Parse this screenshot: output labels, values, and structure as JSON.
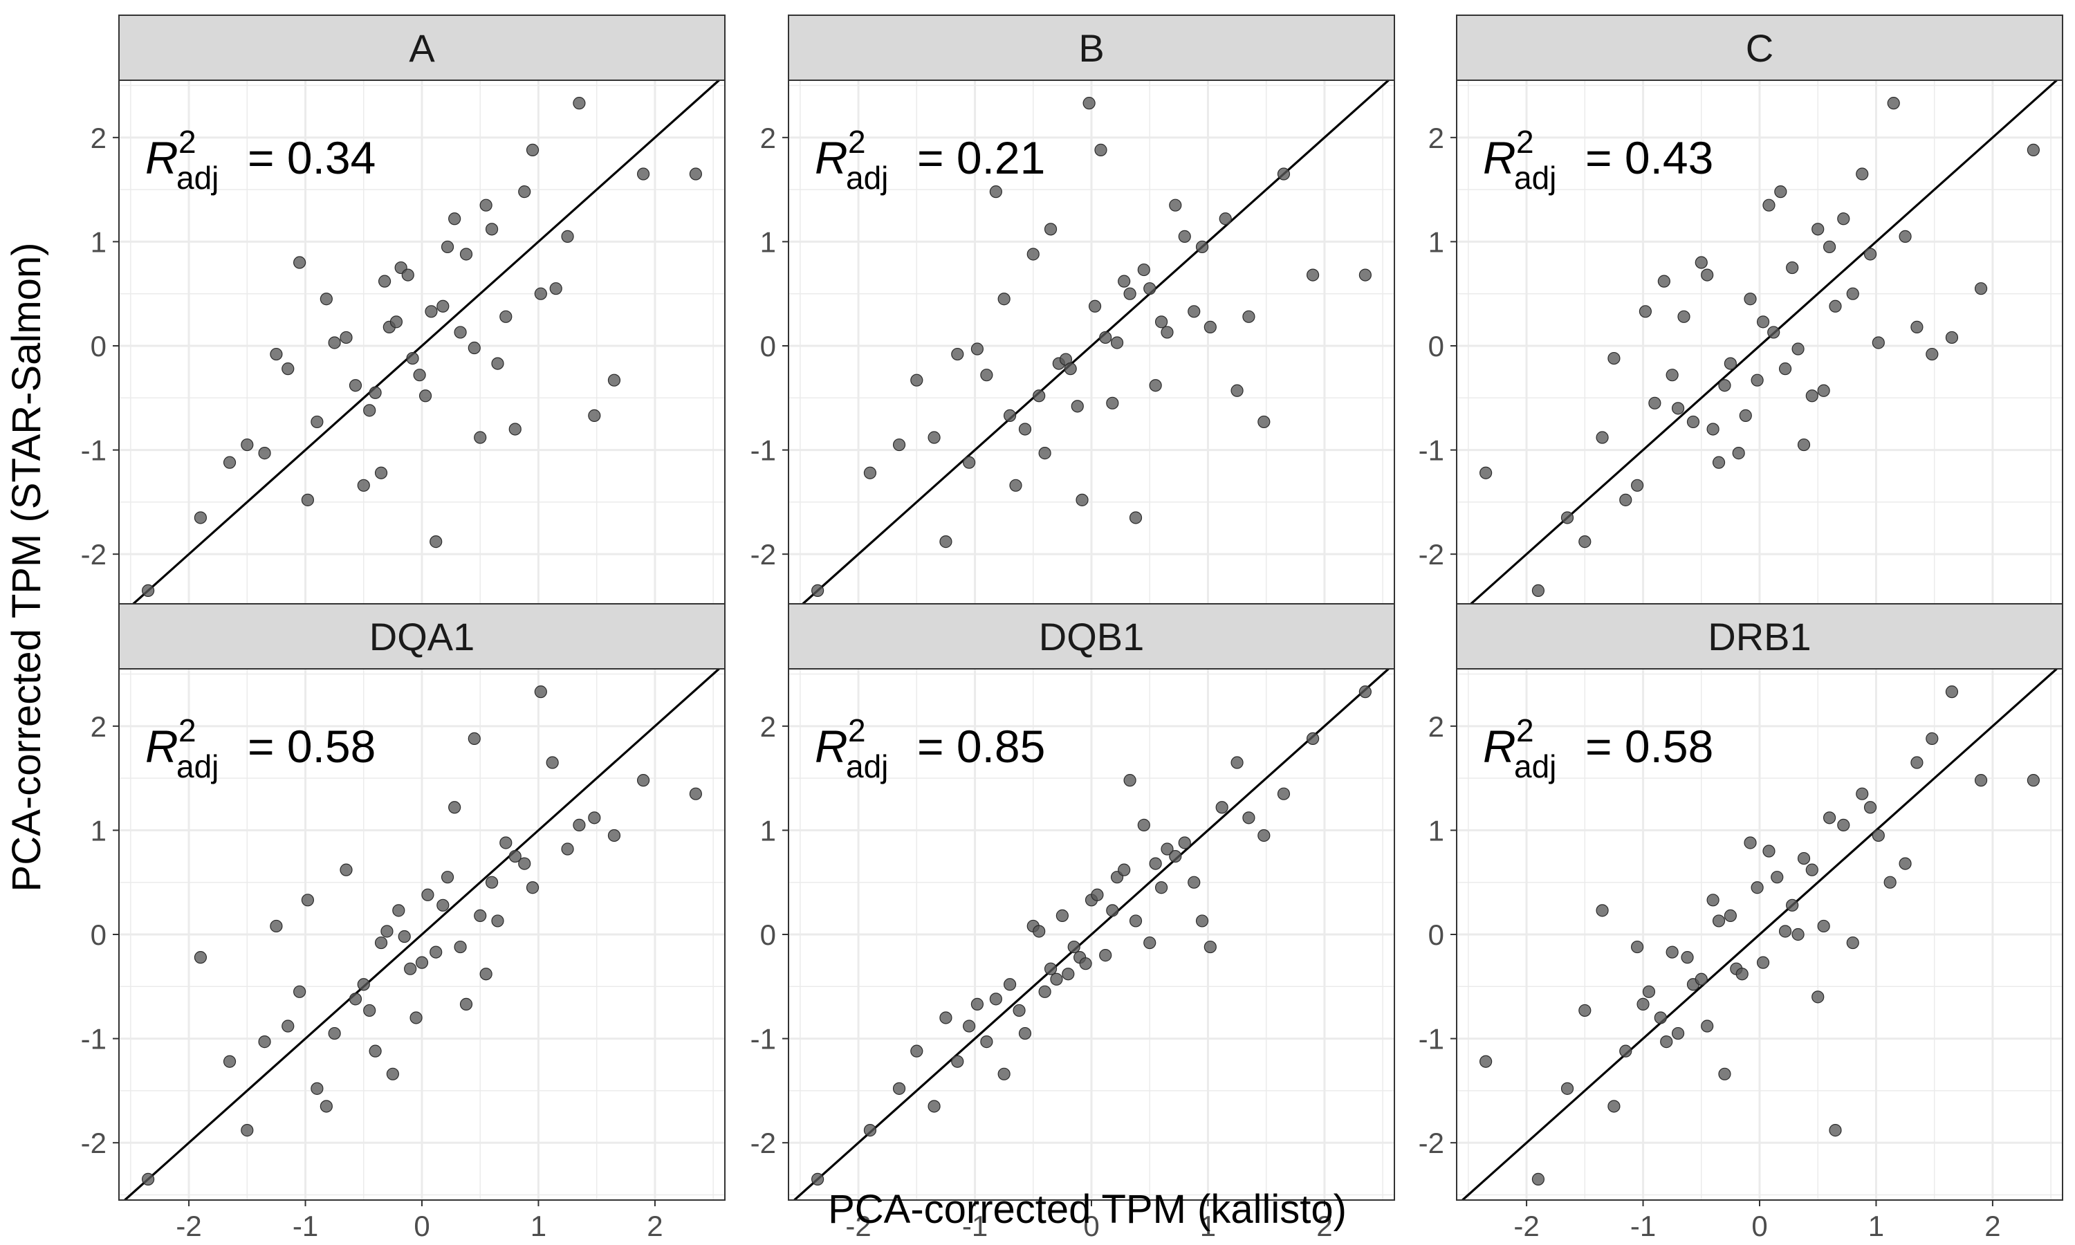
{
  "figure": {
    "xlabel": "PCA-corrected TPM (kallisto)",
    "ylabel": "PCA-corrected TPM (STAR-Salmon)",
    "stat_symbol": "R",
    "stat_superscript": "2",
    "stat_subscript": "adj",
    "point_color": "#595959",
    "strip_fill": "#d9d9d9",
    "grid_color": "#ebebeb",
    "line_color": "#000000"
  },
  "chart_data": [
    {
      "type": "scatter",
      "panel": "A",
      "r2_adj_label": "= 0.34",
      "xlim": [
        -2.6,
        2.6
      ],
      "ylim": [
        -2.55,
        2.55
      ],
      "xticks": [
        "-2",
        "-1",
        "0",
        "1",
        "2"
      ],
      "yticks": [
        "-2",
        "-1",
        "0",
        "1",
        "2"
      ],
      "reference_line": "y = x",
      "x": [
        -2.35,
        -1.9,
        -1.65,
        -1.5,
        -1.35,
        -1.25,
        -1.15,
        -1.05,
        -0.98,
        -0.9,
        -0.82,
        -0.75,
        -0.65,
        -0.57,
        -0.5,
        -0.45,
        -0.4,
        -0.35,
        -0.32,
        -0.28,
        -0.22,
        -0.18,
        -0.12,
        -0.08,
        -0.02,
        0.03,
        0.08,
        0.12,
        0.18,
        0.22,
        0.28,
        0.33,
        0.38,
        0.45,
        0.5,
        0.55,
        0.6,
        0.65,
        0.72,
        0.8,
        0.88,
        0.95,
        1.02,
        1.15,
        1.25,
        1.35,
        1.48,
        1.65,
        1.9,
        2.35
      ],
      "y": [
        -2.35,
        -1.65,
        -1.12,
        -0.95,
        -1.03,
        -0.08,
        -0.22,
        0.8,
        -1.48,
        -0.73,
        0.45,
        0.03,
        0.08,
        -0.38,
        -1.34,
        -0.62,
        -0.45,
        -1.22,
        0.62,
        0.18,
        0.23,
        0.75,
        0.68,
        -0.12,
        -0.28,
        -0.48,
        0.33,
        -1.88,
        0.38,
        0.95,
        1.22,
        0.13,
        0.88,
        -0.02,
        -0.88,
        1.35,
        1.12,
        -0.17,
        0.28,
        -0.8,
        1.48,
        1.88,
        0.5,
        0.55,
        1.05,
        2.33,
        -0.67,
        -0.33,
        1.65,
        1.65
      ]
    },
    {
      "type": "scatter",
      "panel": "B",
      "r2_adj_label": "= 0.21",
      "xlim": [
        -2.6,
        2.6
      ],
      "ylim": [
        -2.55,
        2.55
      ],
      "xticks": [
        "-2",
        "-1",
        "0",
        "1",
        "2"
      ],
      "yticks": [
        "-2",
        "-1",
        "0",
        "1",
        "2"
      ],
      "reference_line": "y = x",
      "x": [
        -2.35,
        -1.9,
        -1.65,
        -1.5,
        -1.35,
        -1.25,
        -1.15,
        -1.05,
        -0.98,
        -0.9,
        -0.82,
        -0.75,
        -0.7,
        -0.65,
        -0.57,
        -0.5,
        -0.45,
        -0.4,
        -0.35,
        -0.28,
        -0.22,
        -0.18,
        -0.12,
        -0.08,
        -0.02,
        0.03,
        0.08,
        0.12,
        0.18,
        0.22,
        0.28,
        0.33,
        0.38,
        0.45,
        0.5,
        0.55,
        0.6,
        0.65,
        0.72,
        0.8,
        0.88,
        0.95,
        1.02,
        1.15,
        1.25,
        1.35,
        1.48,
        1.65,
        1.9,
        2.35
      ],
      "y": [
        -2.35,
        -1.22,
        -0.95,
        -0.33,
        -0.88,
        -1.88,
        -0.08,
        -1.12,
        -0.03,
        -0.28,
        1.48,
        0.45,
        -0.67,
        -1.34,
        -0.8,
        0.88,
        -0.48,
        -1.03,
        1.12,
        -0.17,
        -0.13,
        -0.22,
        -0.58,
        -1.48,
        2.33,
        0.38,
        1.88,
        0.08,
        -0.55,
        0.03,
        0.62,
        0.5,
        -1.65,
        0.73,
        0.55,
        -0.38,
        0.23,
        0.13,
        1.35,
        1.05,
        0.33,
        0.95,
        0.18,
        1.22,
        -0.43,
        0.28,
        -0.73,
        1.65,
        0.68,
        0.68
      ]
    },
    {
      "type": "scatter",
      "panel": "C",
      "r2_adj_label": "= 0.43",
      "xlim": [
        -2.6,
        2.6
      ],
      "ylim": [
        -2.55,
        2.55
      ],
      "xticks": [
        "-2",
        "-1",
        "0",
        "1",
        "2"
      ],
      "yticks": [
        "-2",
        "-1",
        "0",
        "1",
        "2"
      ],
      "reference_line": "y = x",
      "x": [
        -2.35,
        -1.9,
        -1.65,
        -1.5,
        -1.35,
        -1.25,
        -1.15,
        -1.05,
        -0.98,
        -0.9,
        -0.82,
        -0.75,
        -0.7,
        -0.65,
        -0.57,
        -0.5,
        -0.45,
        -0.4,
        -0.35,
        -0.3,
        -0.25,
        -0.18,
        -0.12,
        -0.08,
        -0.02,
        0.03,
        0.08,
        0.12,
        0.18,
        0.22,
        0.28,
        0.33,
        0.38,
        0.45,
        0.5,
        0.55,
        0.6,
        0.65,
        0.72,
        0.8,
        0.88,
        0.95,
        1.02,
        1.15,
        1.25,
        1.35,
        1.48,
        1.65,
        1.9,
        2.35
      ],
      "y": [
        -1.22,
        -2.35,
        -1.65,
        -1.88,
        -0.88,
        -0.12,
        -1.48,
        -1.34,
        0.33,
        -0.55,
        0.62,
        -0.28,
        -0.6,
        0.28,
        -0.73,
        0.8,
        0.68,
        -0.8,
        -1.12,
        -0.38,
        -0.17,
        -1.03,
        -0.67,
        0.45,
        -0.33,
        0.23,
        1.35,
        0.13,
        1.48,
        -0.22,
        0.75,
        -0.03,
        -0.95,
        -0.48,
        1.12,
        -0.43,
        0.95,
        0.38,
        1.22,
        0.5,
        1.65,
        0.88,
        0.03,
        2.33,
        1.05,
        0.18,
        -0.08,
        0.08,
        0.55,
        1.88
      ]
    },
    {
      "type": "scatter",
      "panel": "DQA1",
      "r2_adj_label": "= 0.58",
      "xlim": [
        -2.6,
        2.6
      ],
      "ylim": [
        -2.55,
        2.55
      ],
      "xticks": [
        "-2",
        "-1",
        "0",
        "1",
        "2"
      ],
      "yticks": [
        "-2",
        "-1",
        "0",
        "1",
        "2"
      ],
      "reference_line": "y = x",
      "x": [
        -2.35,
        -1.9,
        -1.65,
        -1.5,
        -1.35,
        -1.25,
        -1.15,
        -1.05,
        -0.98,
        -0.9,
        -0.82,
        -0.75,
        -0.65,
        -0.57,
        -0.5,
        -0.45,
        -0.4,
        -0.35,
        -0.3,
        -0.25,
        -0.2,
        -0.15,
        -0.1,
        -0.05,
        0.0,
        0.05,
        0.12,
        0.18,
        0.22,
        0.28,
        0.33,
        0.38,
        0.45,
        0.5,
        0.55,
        0.6,
        0.65,
        0.72,
        0.8,
        0.88,
        0.95,
        1.02,
        1.12,
        1.25,
        1.35,
        1.48,
        1.65,
        1.9,
        2.35
      ],
      "y": [
        -2.35,
        -0.22,
        -1.22,
        -1.88,
        -1.03,
        0.08,
        -0.88,
        -0.55,
        0.33,
        -1.48,
        -1.65,
        -0.95,
        0.62,
        -0.62,
        -0.48,
        -0.73,
        -1.12,
        -0.08,
        0.03,
        -1.34,
        0.23,
        -0.02,
        -0.33,
        -0.8,
        -0.27,
        0.38,
        -0.17,
        0.28,
        0.55,
        1.22,
        -0.12,
        -0.67,
        1.88,
        0.18,
        -0.38,
        0.5,
        0.13,
        0.88,
        0.75,
        0.68,
        0.45,
        2.33,
        1.65,
        0.82,
        1.05,
        1.12,
        0.95,
        1.48,
        1.35
      ]
    },
    {
      "type": "scatter",
      "panel": "DQB1",
      "r2_adj_label": "= 0.85",
      "xlim": [
        -2.6,
        2.6
      ],
      "ylim": [
        -2.55,
        2.55
      ],
      "xticks": [
        "-2",
        "-1",
        "0",
        "1",
        "2"
      ],
      "yticks": [
        "-2",
        "-1",
        "0",
        "1",
        "2"
      ],
      "reference_line": "y = x",
      "x": [
        -2.35,
        -1.9,
        -1.65,
        -1.5,
        -1.35,
        -1.25,
        -1.15,
        -1.05,
        -0.98,
        -0.9,
        -0.82,
        -0.75,
        -0.7,
        -0.62,
        -0.57,
        -0.5,
        -0.45,
        -0.4,
        -0.35,
        -0.3,
        -0.25,
        -0.2,
        -0.15,
        -0.1,
        -0.05,
        0.0,
        0.05,
        0.12,
        0.18,
        0.22,
        0.28,
        0.33,
        0.38,
        0.45,
        0.5,
        0.55,
        0.6,
        0.65,
        0.72,
        0.8,
        0.88,
        0.95,
        1.02,
        1.12,
        1.25,
        1.35,
        1.48,
        1.65,
        1.9,
        2.35
      ],
      "y": [
        -2.35,
        -1.88,
        -1.48,
        -1.12,
        -1.65,
        -0.8,
        -1.22,
        -0.88,
        -0.67,
        -1.03,
        -0.62,
        -1.34,
        -0.48,
        -0.73,
        -0.95,
        0.08,
        0.03,
        -0.55,
        -0.33,
        -0.43,
        0.18,
        -0.38,
        -0.12,
        -0.22,
        -0.28,
        0.33,
        0.38,
        -0.2,
        0.23,
        0.55,
        0.62,
        1.48,
        0.13,
        1.05,
        -0.08,
        0.68,
        0.45,
        0.82,
        0.75,
        0.88,
        0.5,
        0.13,
        -0.12,
        1.22,
        1.65,
        1.12,
        0.95,
        1.35,
        1.88,
        2.33
      ]
    },
    {
      "type": "scatter",
      "panel": "DRB1",
      "r2_adj_label": "= 0.58",
      "xlim": [
        -2.6,
        2.6
      ],
      "ylim": [
        -2.55,
        2.55
      ],
      "xticks": [
        "-2",
        "-1",
        "0",
        "1",
        "2"
      ],
      "yticks": [
        "-2",
        "-1",
        "0",
        "1",
        "2"
      ],
      "reference_line": "y = x",
      "x": [
        -2.35,
        -1.9,
        -1.65,
        -1.5,
        -1.35,
        -1.25,
        -1.15,
        -1.05,
        -1.0,
        -0.95,
        -0.85,
        -0.8,
        -0.75,
        -0.7,
        -0.62,
        -0.57,
        -0.5,
        -0.45,
        -0.4,
        -0.35,
        -0.3,
        -0.25,
        -0.2,
        -0.15,
        -0.08,
        -0.02,
        0.03,
        0.08,
        0.15,
        0.22,
        0.28,
        0.33,
        0.38,
        0.45,
        0.5,
        0.55,
        0.6,
        0.65,
        0.72,
        0.8,
        0.88,
        0.95,
        1.02,
        1.12,
        1.25,
        1.35,
        1.48,
        1.65,
        1.9,
        2.35
      ],
      "y": [
        -1.22,
        -2.35,
        -1.48,
        -0.73,
        0.23,
        -1.65,
        -1.12,
        -0.12,
        -0.67,
        -0.55,
        -0.8,
        -1.03,
        -0.17,
        -0.95,
        -0.22,
        -0.48,
        -0.43,
        -0.88,
        0.33,
        0.13,
        -1.34,
        0.18,
        -0.33,
        -0.38,
        0.88,
        0.45,
        -0.27,
        0.8,
        0.55,
        0.03,
        0.28,
        0.0,
        0.73,
        0.62,
        -0.6,
        0.08,
        1.12,
        -1.88,
        1.05,
        -0.08,
        1.35,
        1.22,
        0.95,
        0.5,
        0.68,
        1.65,
        1.88,
        2.33,
        1.48,
        1.48
      ]
    }
  ]
}
